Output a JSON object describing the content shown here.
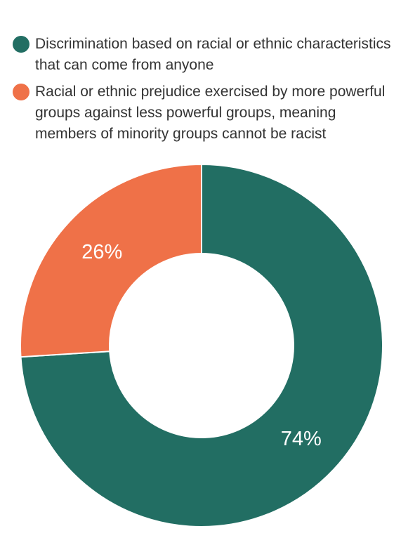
{
  "chart_data": {
    "type": "pie",
    "donut": true,
    "title": "",
    "series": [
      {
        "label": "Discrimination based on racial or ethnic characteristics that can come from anyone",
        "value": 74,
        "display": "74%",
        "color": "#226e63"
      },
      {
        "label": "Racial or ethnic prejudice exercised by more powerful groups against less powerful groups, meaning members of minority groups cannot be racist",
        "value": 26,
        "display": "26%",
        "color": "#ef7148"
      }
    ],
    "legend_position": "top-left"
  }
}
